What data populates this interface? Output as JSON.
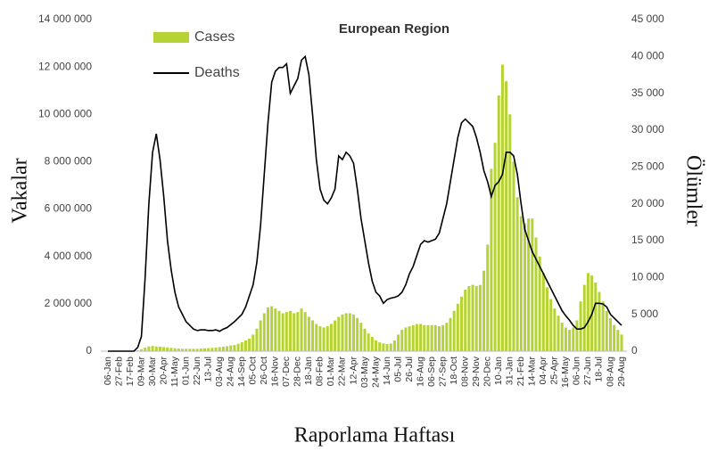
{
  "chart_data": {
    "type": "bar-line",
    "title": "European Region",
    "y_label": "Vakalar",
    "y2_label": "Ölümler",
    "x_label": "Raporlama Haftası",
    "categories": [
      "06-Jan",
      null,
      null,
      "27-Feb",
      null,
      null,
      "17-Feb",
      null,
      null,
      "09-Mar",
      null,
      null,
      "30-Mar",
      null,
      null,
      "20-Apr",
      null,
      null,
      "11-May",
      null,
      null,
      "01-Jun",
      null,
      null,
      "22-Jun",
      null,
      null,
      "13-Jul",
      null,
      null,
      "03-Aug",
      null,
      null,
      "24-Aug",
      null,
      null,
      "14-Sep",
      null,
      null,
      "05-Oct",
      null,
      null,
      "26-Oct",
      null,
      null,
      "16-Nov",
      null,
      null,
      "07-Dec",
      null,
      null,
      "28-Dec",
      null,
      null,
      "18-Jan",
      null,
      null,
      "08-Feb",
      null,
      null,
      "01-Mar",
      null,
      null,
      "22-Mar",
      null,
      null,
      "12-Apr",
      null,
      null,
      "03-May",
      null,
      null,
      "24-May",
      null,
      null,
      "14-Jun",
      null,
      null,
      "05-Jul",
      null,
      null,
      "26-Jul",
      null,
      null,
      "16-Aug",
      null,
      null,
      "06-Sep",
      null,
      null,
      "27-Sep",
      null,
      null,
      "18-Oct",
      null,
      null,
      "08-Nov",
      null,
      null,
      "29-Nov",
      null,
      null,
      "20-Dec",
      null,
      null,
      "10-Jan",
      null,
      null,
      "31-Jan",
      null,
      null,
      "21-Feb",
      null,
      null,
      "14-Mar",
      null,
      null,
      "04-Apr",
      null,
      null,
      "25-Apr",
      null,
      null,
      "16-May",
      null,
      null,
      "06-Jun",
      null,
      null,
      "27-Jun",
      null,
      null,
      "18-Jul",
      null,
      null,
      "08-Aug",
      null,
      null,
      "29-Aug"
    ],
    "series": [
      {
        "name": "Cases",
        "color": "#b5d334",
        "kind": "bar",
        "values": [
          0,
          0,
          0,
          0,
          0,
          0,
          0,
          0,
          30000,
          80000,
          150000,
          200000,
          220000,
          200000,
          190000,
          170000,
          160000,
          140000,
          120000,
          110000,
          100000,
          100000,
          100000,
          100000,
          100000,
          110000,
          120000,
          130000,
          140000,
          150000,
          170000,
          190000,
          210000,
          240000,
          260000,
          310000,
          380000,
          450000,
          530000,
          700000,
          950000,
          1300000,
          1600000,
          1850000,
          1900000,
          1800000,
          1700000,
          1600000,
          1650000,
          1700000,
          1600000,
          1650000,
          1800000,
          1650000,
          1450000,
          1300000,
          1150000,
          1050000,
          1000000,
          1050000,
          1150000,
          1300000,
          1450000,
          1550000,
          1600000,
          1600000,
          1550000,
          1400000,
          1200000,
          950000,
          750000,
          600000,
          450000,
          370000,
          330000,
          300000,
          320000,
          450000,
          700000,
          900000,
          1000000,
          1050000,
          1100000,
          1150000,
          1150000,
          1100000,
          1100000,
          1100000,
          1100000,
          1050000,
          1100000,
          1200000,
          1400000,
          1700000,
          2000000,
          2300000,
          2600000,
          2750000,
          2800000,
          2750000,
          2800000,
          3400000,
          4500000,
          7700000,
          8800000,
          10800000,
          12100000,
          11400000,
          10000000,
          8000000,
          6500000,
          5700000,
          5400000,
          5600000,
          5600000,
          4800000,
          4000000,
          3300000,
          2700000,
          2200000,
          1800000,
          1500000,
          1200000,
          1000000,
          900000,
          1000000,
          1300000,
          2100000,
          2800000,
          3300000,
          3200000,
          2900000,
          2500000,
          2100000,
          1700000,
          1400000,
          1100000,
          900000,
          700000
        ]
      },
      {
        "name": "Deaths",
        "color": "#000000",
        "kind": "line",
        "axis": "y2",
        "values": [
          0,
          0,
          0,
          0,
          0,
          0,
          0,
          0,
          500,
          2000,
          10000,
          20000,
          27000,
          29500,
          26000,
          21000,
          15000,
          11000,
          8000,
          6000,
          5000,
          4000,
          3500,
          3000,
          2800,
          2900,
          2900,
          2800,
          2800,
          2900,
          2700,
          3000,
          3200,
          3600,
          4000,
          4500,
          5000,
          6000,
          7500,
          9000,
          12000,
          17000,
          24000,
          31000,
          36500,
          38000,
          38500,
          38500,
          39000,
          35000,
          36000,
          37000,
          39500,
          40000,
          37500,
          32000,
          26000,
          22000,
          20500,
          20000,
          20800,
          22000,
          26500,
          26000,
          27000,
          26500,
          25500,
          22000,
          18000,
          15000,
          12000,
          9500,
          8000,
          7500,
          6500,
          7000,
          7200,
          7300,
          7500,
          8000,
          9000,
          10500,
          11500,
          13000,
          14500,
          15000,
          14800,
          15000,
          15200,
          16000,
          18000,
          20000,
          23000,
          26000,
          29000,
          31000,
          31500,
          31000,
          30500,
          29000,
          27000,
          24500,
          23000,
          21000,
          22500,
          23000,
          24000,
          27000,
          27000,
          26500,
          24000,
          20000,
          16500,
          15000,
          13500,
          12500,
          11500,
          10500,
          9500,
          8500,
          7500,
          6500,
          5500,
          4800,
          4200,
          3500,
          3000,
          3000,
          3200,
          4000,
          5000,
          6500,
          6500,
          6400,
          6000,
          5000,
          4500,
          4000,
          3500
        ]
      }
    ],
    "ylim": [
      0,
      14000000
    ],
    "yticks": [
      0,
      {
        "value": 2000000,
        "label": "2 000 000"
      },
      {
        "value": 4000000,
        "label": "4 000 000"
      },
      {
        "value": 6000000,
        "label": "6 000 000"
      },
      {
        "value": 8000000,
        "label": "8 000 000"
      },
      {
        "value": 10000000,
        "label": "10 000 000"
      },
      {
        "value": 12000000,
        "label": "12 000 000"
      },
      {
        "value": 14000000,
        "label": "14 000 000"
      }
    ],
    "y2lim": [
      0,
      45000
    ],
    "y2ticks": [
      0,
      {
        "value": 5000,
        "label": "5 000"
      },
      {
        "value": 10000,
        "label": "10 000"
      },
      {
        "value": 15000,
        "label": "15 000"
      },
      {
        "value": 20000,
        "label": "20 000"
      },
      {
        "value": 25000,
        "label": "25 000"
      },
      {
        "value": 30000,
        "label": "30 000"
      },
      {
        "value": 35000,
        "label": "35 000"
      },
      {
        "value": 40000,
        "label": "40 000"
      },
      {
        "value": 45000,
        "label": "45 000"
      }
    ]
  }
}
